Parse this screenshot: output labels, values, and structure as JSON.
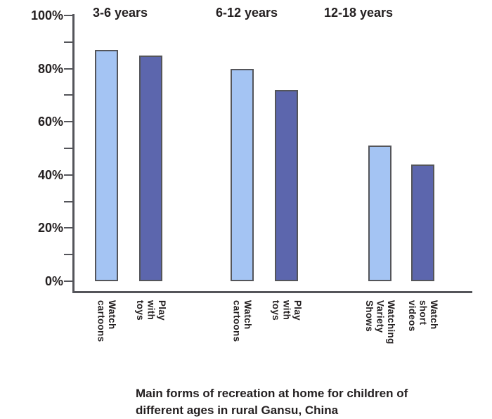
{
  "chart_data": {
    "type": "bar",
    "title": "Main forms of recreation at home for children of different ages in rural Gansu, China",
    "caption_lines": [
      "Main forms of recreation at home for children of",
      "different ages in rural Gansu, China"
    ],
    "ylim": [
      0,
      100
    ],
    "grid": false,
    "legend": "none",
    "yticks": [
      {
        "value": 0,
        "label": "0%"
      },
      {
        "value": 10,
        "label": ""
      },
      {
        "value": 20,
        "label": "20%"
      },
      {
        "value": 30,
        "label": ""
      },
      {
        "value": 40,
        "label": "40%"
      },
      {
        "value": 50,
        "label": ""
      },
      {
        "value": 60,
        "label": "60%"
      },
      {
        "value": 70,
        "label": ""
      },
      {
        "value": 80,
        "label": "80%"
      },
      {
        "value": 90,
        "label": ""
      },
      {
        "value": 100,
        "label": "100%"
      }
    ],
    "groups": [
      {
        "label": "3-6 years",
        "bars": [
          {
            "category": "Watch cartoons",
            "label_lines": [
              "Watch",
              "cartoons"
            ],
            "value": 87,
            "series": "light"
          },
          {
            "category": "Play with toys",
            "label_lines": [
              "Play",
              "with",
              "toys"
            ],
            "value": 85,
            "series": "dark"
          }
        ]
      },
      {
        "label": "6-12 years",
        "bars": [
          {
            "category": "Watch cartoons",
            "label_lines": [
              "Watch",
              "cartoons"
            ],
            "value": 80,
            "series": "light"
          },
          {
            "category": "Play with toys",
            "label_lines": [
              "Play",
              "with",
              "toys"
            ],
            "value": 72,
            "series": "dark"
          }
        ]
      },
      {
        "label": "12-18 years",
        "bars": [
          {
            "category": "Watching Variety Shows",
            "label_lines": [
              "Watching",
              "Variety",
              "Shows"
            ],
            "value": 51,
            "series": "light"
          },
          {
            "category": "Watch short videos",
            "label_lines": [
              "Watch",
              "short",
              "videos"
            ],
            "value": 44,
            "series": "dark"
          }
        ]
      }
    ],
    "colors": {
      "light": "#a4c4f3",
      "dark": "#5c66ad",
      "outline": "#54555a",
      "text": "#231f20"
    }
  }
}
